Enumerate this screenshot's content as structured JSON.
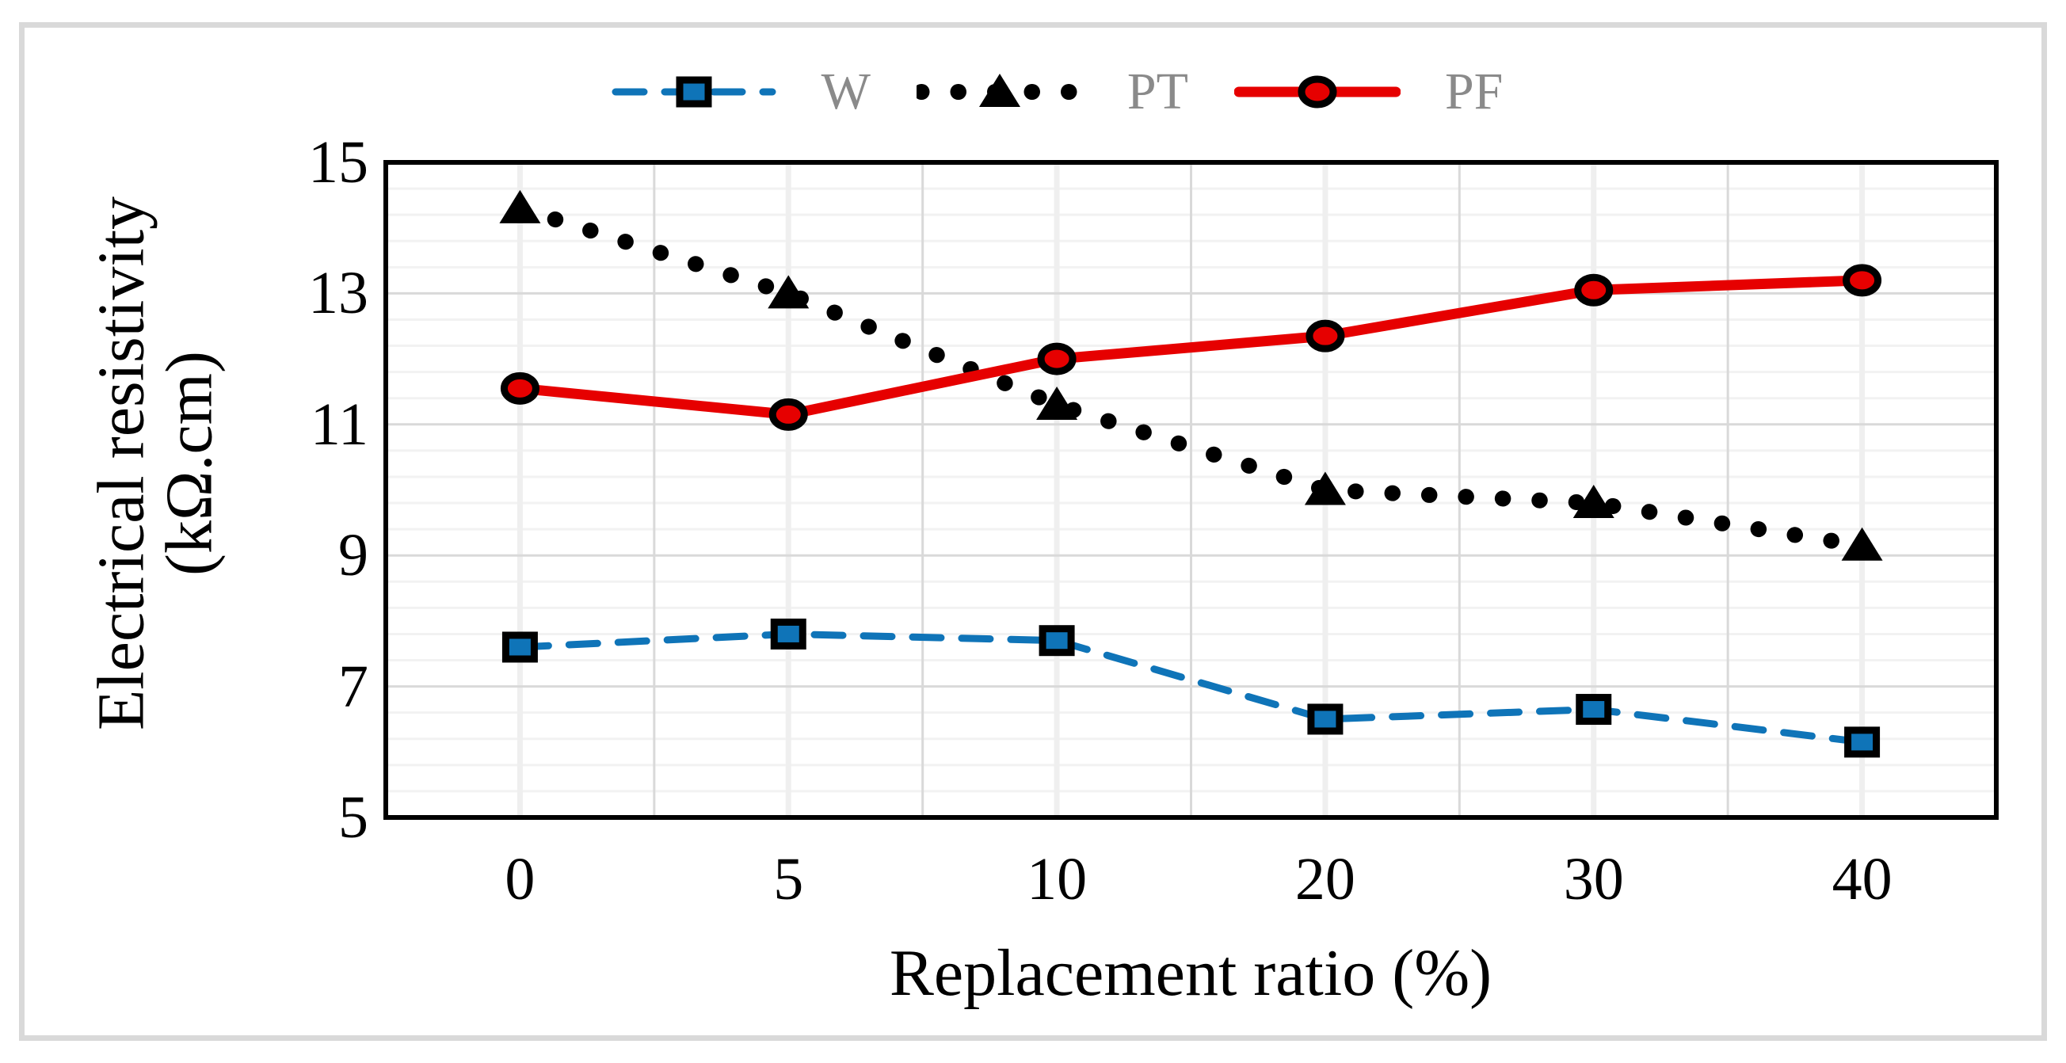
{
  "figure": {
    "background": "#ffffff",
    "border_color": "#d9d9d9"
  },
  "chart_data": {
    "type": "line",
    "title": "",
    "xlabel": "Replacement ratio (%)",
    "ylabel_line1": "Electrical resistivity",
    "ylabel_line2": "(kΩ.cm)",
    "categories": [
      "0",
      "5",
      "10",
      "20",
      "30",
      "40"
    ],
    "y_tick_labels": [
      "15",
      "13",
      "11",
      "9",
      "7",
      "5"
    ],
    "y_tick_values": [
      15,
      13,
      11,
      9,
      7,
      5
    ],
    "ylim": [
      5,
      15
    ],
    "y_major_unit": 2,
    "y_minor_unit": 0.4,
    "grid": "major-and-minor",
    "legend_position": "top-center",
    "series": [
      {
        "name": "W",
        "values": [
          7.6,
          7.8,
          7.7,
          6.5,
          6.65,
          6.15
        ],
        "color": "#0f74b8",
        "line_style": "dashed",
        "marker": "square"
      },
      {
        "name": "PT",
        "values": [
          14.3,
          13.0,
          11.3,
          10.0,
          9.8,
          9.15
        ],
        "color": "#000000",
        "line_style": "dotted",
        "marker": "triangle"
      },
      {
        "name": "PF",
        "values": [
          11.55,
          11.15,
          12.0,
          12.35,
          13.05,
          13.2
        ],
        "color": "#e60000",
        "line_style": "solid",
        "marker": "circle"
      }
    ],
    "colors": {
      "grid_minor": "#f2f2f2",
      "grid_major": "#d9d9d9",
      "grid_vertical_minor": "#efefef",
      "frame": "#000000",
      "legend_text": "#8a8a8a",
      "tick_text": "#000000"
    }
  }
}
